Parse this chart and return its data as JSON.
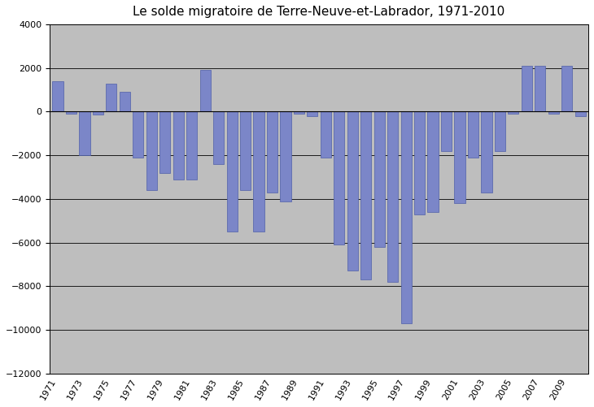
{
  "title": "Le solde migratoire de Terre-Neuve-et-Labrador, 1971-2010",
  "years": [
    1971,
    1972,
    1973,
    1974,
    1975,
    1976,
    1977,
    1978,
    1979,
    1980,
    1981,
    1982,
    1983,
    1984,
    1985,
    1986,
    1987,
    1988,
    1989,
    1990,
    1991,
    1992,
    1993,
    1994,
    1995,
    1996,
    1997,
    1998,
    1999,
    2000,
    2001,
    2002,
    2003,
    2004,
    2005,
    2006,
    2007,
    2008,
    2009,
    2010
  ],
  "values": [
    1400,
    -100,
    -2000,
    -150,
    1300,
    900,
    -2100,
    -3600,
    -2800,
    -3100,
    -3100,
    1900,
    -2400,
    -5500,
    -3600,
    -5500,
    -3700,
    -4100,
    -100,
    -200,
    -2100,
    -6100,
    -7300,
    -7700,
    -6200,
    -7800,
    -9700,
    -4700,
    -4600,
    -1800,
    -4200,
    -2100,
    -3700,
    -1800,
    -100,
    2100,
    2100,
    -100,
    2100,
    -200
  ],
  "label_years": [
    1971,
    1973,
    1975,
    1977,
    1979,
    1981,
    1983,
    1985,
    1987,
    1989,
    1991,
    1993,
    1995,
    1997,
    1999,
    2001,
    2003,
    2005,
    2007,
    2009
  ],
  "bar_color": "#7b86c8",
  "bar_edgecolor": "#4f5fa8",
  "plot_bgcolor": "#bebebe",
  "fig_bgcolor": "#ffffff",
  "ylim_min": -12000,
  "ylim_max": 4000,
  "yticks": [
    -12000,
    -10000,
    -8000,
    -6000,
    -4000,
    -2000,
    0,
    2000,
    4000
  ],
  "title_fontsize": 11,
  "tick_fontsize": 8,
  "bar_width": 0.8
}
